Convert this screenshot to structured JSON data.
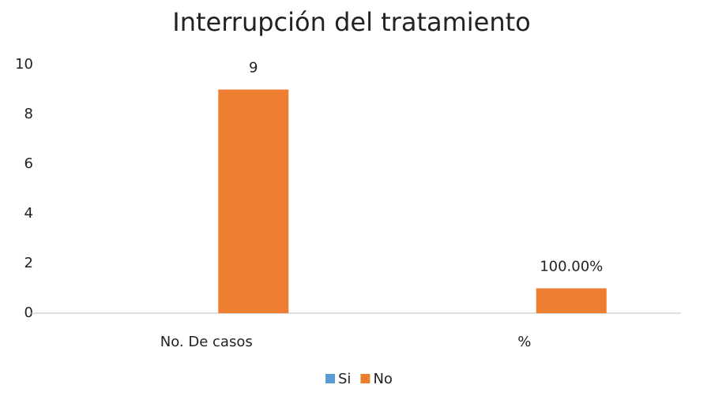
{
  "chart_data": {
    "type": "bar",
    "title": "Interrupción del tratamiento",
    "categories": [
      "No. De casos",
      "%"
    ],
    "series": [
      {
        "name": "Si",
        "color": "#5b9bd5",
        "values": [
          null,
          null
        ]
      },
      {
        "name": "No",
        "color": "#ed7d31",
        "values": [
          9,
          1
        ],
        "value_labels": [
          "9",
          "100.00%"
        ]
      }
    ],
    "ylim": [
      0,
      10
    ],
    "yticks": [
      0,
      2,
      4,
      6,
      8,
      10
    ],
    "grid": false
  }
}
